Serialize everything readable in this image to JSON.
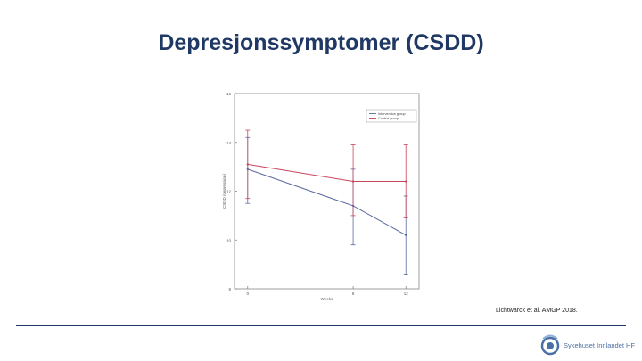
{
  "slide": {
    "title": "Depresjonssymptomer (CSDD)",
    "citation": "Lichtwarck et al. AMGP 2018.",
    "logo_text": "Sykehuset Innlandet HF"
  },
  "colors": {
    "title": "#1f3864",
    "intervention": "#5b6a9e",
    "control": "#c9455c",
    "axis": "#777777",
    "rule": "#1f3864"
  },
  "chart_data": {
    "type": "line",
    "xlabel": "Weeks",
    "ylabel": "CSDD (depression)",
    "xlim": [
      -1,
      13
    ],
    "ylim": [
      8,
      16
    ],
    "x_ticks": [
      0,
      8,
      12
    ],
    "y_ticks": [
      8,
      10,
      12,
      14,
      16
    ],
    "grid": false,
    "legend_position": "top-right",
    "series": [
      {
        "name": "Intervention group",
        "color": "#5b6a9e",
        "x": [
          0,
          8,
          12
        ],
        "y": [
          12.9,
          11.4,
          10.2
        ],
        "err_low": [
          11.5,
          9.8,
          8.6
        ],
        "err_high": [
          14.2,
          12.9,
          11.8
        ]
      },
      {
        "name": "Control group",
        "color": "#c9455c",
        "x": [
          0,
          8,
          12
        ],
        "y": [
          13.1,
          12.4,
          12.4
        ],
        "err_low": [
          11.7,
          11.0,
          10.9
        ],
        "err_high": [
          14.5,
          13.9,
          13.9
        ]
      }
    ]
  }
}
